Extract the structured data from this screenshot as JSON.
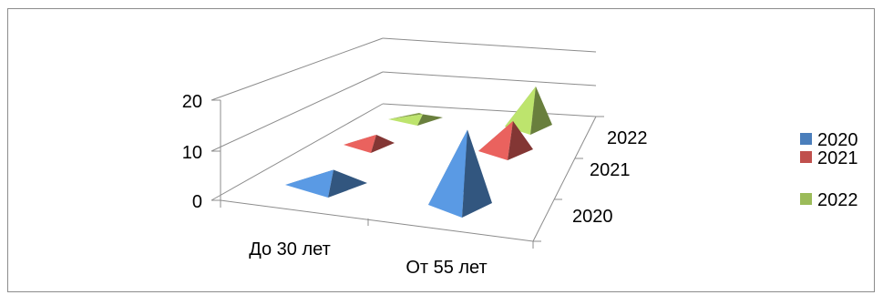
{
  "chart_data": {
    "type": "bar",
    "shape": "3d-pyramid",
    "title": "",
    "xlabel": "",
    "ylabel": "",
    "categories": [
      "До 30 лет",
      "От 55 лет"
    ],
    "series": [
      {
        "name": "2020",
        "color": "#4a7ebb",
        "values": [
          3,
          15
        ]
      },
      {
        "name": "2021",
        "color": "#c0504d",
        "values": [
          2,
          6
        ]
      },
      {
        "name": "2022",
        "color": "#9bbb59",
        "values": [
          1,
          8
        ]
      }
    ],
    "y_ticks": [
      "0",
      "10",
      "20"
    ],
    "ylim": [
      0,
      20
    ],
    "depth_labels": [
      "2020",
      "2021",
      "2022"
    ],
    "grid": true,
    "legend_position": "right"
  }
}
